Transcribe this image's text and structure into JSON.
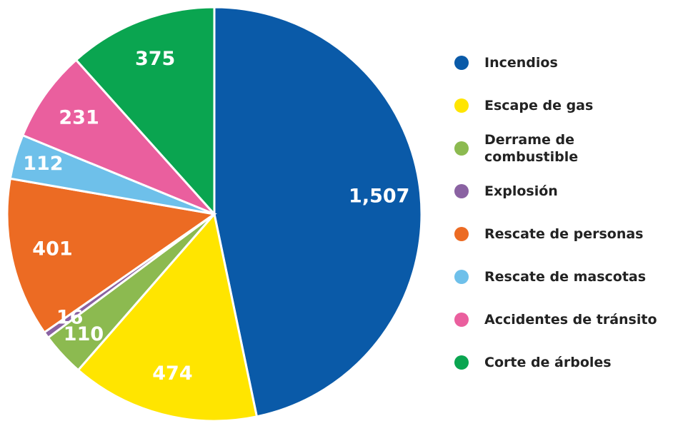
{
  "chart_data": {
    "type": "pie",
    "categories": [
      "Incendios",
      "Escape de gas",
      "Derrame de combustible",
      "Explosión",
      "Rescate de personas",
      "Rescate de mascotas",
      "Accidentes de tránsito",
      "Corte de árboles"
    ],
    "values": [
      1507,
      474,
      110,
      16,
      401,
      112,
      231,
      375
    ],
    "value_labels": [
      "1,507",
      "474",
      "110",
      "16",
      "401",
      "112",
      "231",
      "375"
    ],
    "colors": [
      "#0a5aa8",
      "#ffe500",
      "#8cba50",
      "#8a62a2",
      "#ec6b23",
      "#6ec0ea",
      "#ea5f9e",
      "#0aa550"
    ],
    "legend": "right"
  }
}
